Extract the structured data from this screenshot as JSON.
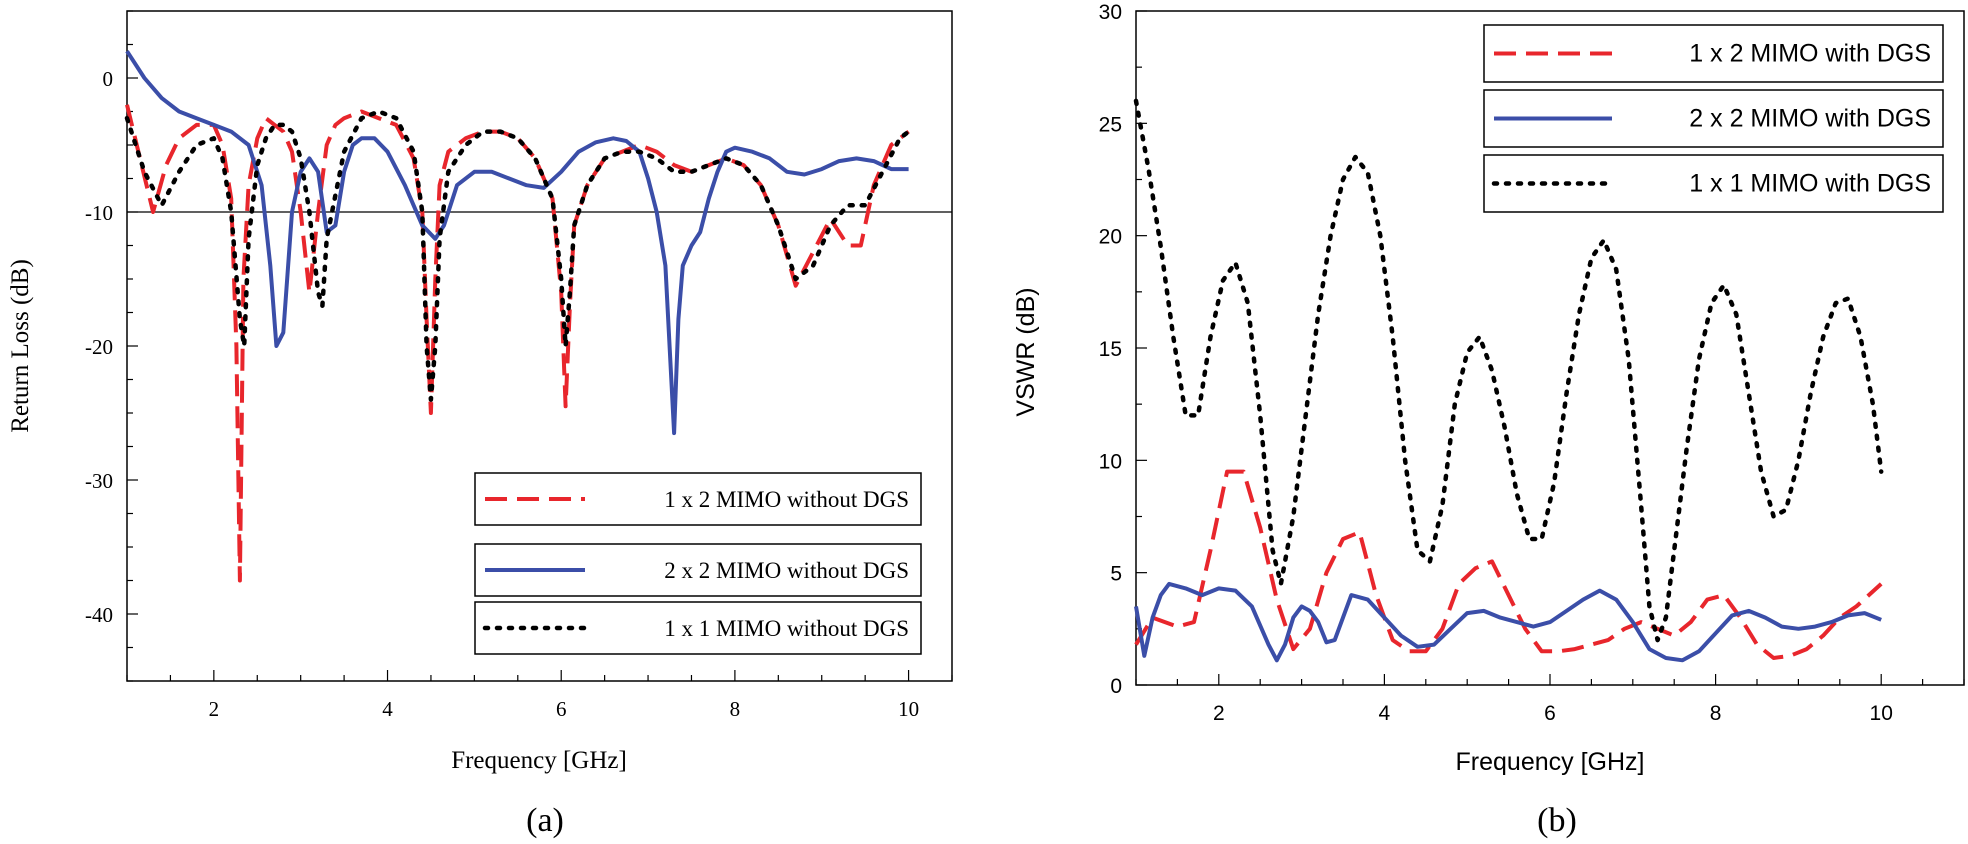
{
  "figure": {
    "panel_a_caption": "(a)",
    "panel_b_caption": "(b)"
  },
  "chart_data": [
    {
      "type": "line",
      "panel": "a",
      "title": "",
      "xlabel": "Frequency [GHz]",
      "ylabel": "Return Loss (dB)",
      "xlim": [
        1,
        10.5
      ],
      "ylim": [
        -45,
        5
      ],
      "xticks": [
        2,
        4,
        6,
        8,
        10
      ],
      "yticks": [
        0,
        -10,
        -20,
        -30,
        -40
      ],
      "reference_line_y": -10,
      "legend_position": "bottom-right",
      "series": [
        {
          "name": "1 x 2 MIMO without DGS",
          "color": "#e8262c",
          "style": "dashed",
          "x": [
            1.0,
            1.15,
            1.3,
            1.45,
            1.6,
            1.8,
            2.0,
            2.1,
            2.2,
            2.26,
            2.3,
            2.34,
            2.4,
            2.5,
            2.6,
            2.7,
            2.8,
            2.9,
            3.0,
            3.1,
            3.2,
            3.3,
            3.4,
            3.5,
            3.7,
            3.9,
            4.1,
            4.3,
            4.4,
            4.45,
            4.5,
            4.55,
            4.6,
            4.7,
            4.9,
            5.1,
            5.3,
            5.5,
            5.7,
            5.9,
            6.0,
            6.05,
            6.1,
            6.15,
            6.3,
            6.5,
            6.7,
            6.9,
            7.1,
            7.3,
            7.5,
            7.7,
            7.9,
            8.1,
            8.3,
            8.5,
            8.7,
            8.9,
            9.1,
            9.3,
            9.45,
            9.6,
            9.8,
            10.0
          ],
          "y": [
            -2,
            -6,
            -10,
            -6.5,
            -4.5,
            -3.5,
            -3.5,
            -5,
            -9,
            -20,
            -37.5,
            -15,
            -8,
            -4.5,
            -3,
            -3.5,
            -4,
            -5.5,
            -10,
            -16,
            -10,
            -5,
            -3.5,
            -3,
            -2.5,
            -3,
            -3.5,
            -6,
            -10,
            -18,
            -25,
            -15,
            -8,
            -5.5,
            -4.5,
            -4,
            -4,
            -4.5,
            -6,
            -9,
            -16,
            -24.5,
            -17,
            -11,
            -8,
            -6,
            -5.5,
            -5,
            -5.5,
            -6.5,
            -7,
            -6.5,
            -6,
            -6.5,
            -8,
            -11,
            -15.5,
            -13,
            -10.5,
            -12.5,
            -12.5,
            -8,
            -5,
            -4
          ]
        },
        {
          "name": "2 x 2 MIMO without DGS",
          "color": "#3b4ea8",
          "style": "solid",
          "x": [
            1.0,
            1.2,
            1.4,
            1.6,
            1.8,
            2.0,
            2.2,
            2.4,
            2.55,
            2.65,
            2.72,
            2.8,
            2.9,
            3.0,
            3.1,
            3.2,
            3.3,
            3.4,
            3.5,
            3.6,
            3.7,
            3.85,
            4.0,
            4.2,
            4.4,
            4.55,
            4.65,
            4.8,
            5.0,
            5.2,
            5.4,
            5.6,
            5.8,
            6.0,
            6.2,
            6.4,
            6.6,
            6.75,
            6.9,
            7.0,
            7.1,
            7.2,
            7.3,
            7.35,
            7.4,
            7.5,
            7.6,
            7.7,
            7.8,
            7.9,
            8.0,
            8.2,
            8.4,
            8.6,
            8.8,
            9.0,
            9.2,
            9.4,
            9.6,
            9.8,
            10.0
          ],
          "y": [
            2,
            0,
            -1.5,
            -2.5,
            -3,
            -3.5,
            -4,
            -5,
            -8,
            -14,
            -20,
            -19,
            -10,
            -7,
            -6,
            -7,
            -11.5,
            -11,
            -7,
            -5,
            -4.5,
            -4.5,
            -5.5,
            -8,
            -11,
            -12,
            -11,
            -8,
            -7,
            -7,
            -7.5,
            -8,
            -8.2,
            -7,
            -5.5,
            -4.8,
            -4.5,
            -4.7,
            -5.5,
            -7.5,
            -10,
            -14,
            -26.5,
            -18,
            -14,
            -12.5,
            -11.5,
            -9,
            -7,
            -5.5,
            -5.2,
            -5.5,
            -6,
            -7,
            -7.2,
            -6.8,
            -6.2,
            -6,
            -6.2,
            -6.8,
            -6.8
          ]
        },
        {
          "name": "1 x 1 MIMO without DGS",
          "color": "#000000",
          "style": "dotted",
          "x": [
            1.0,
            1.2,
            1.4,
            1.6,
            1.8,
            2.0,
            2.1,
            2.2,
            2.3,
            2.35,
            2.4,
            2.5,
            2.6,
            2.7,
            2.8,
            2.9,
            3.0,
            3.1,
            3.2,
            3.25,
            3.3,
            3.5,
            3.7,
            3.9,
            4.1,
            4.3,
            4.4,
            4.45,
            4.5,
            4.55,
            4.6,
            4.7,
            4.9,
            5.1,
            5.3,
            5.5,
            5.7,
            5.9,
            6.0,
            6.05,
            6.1,
            6.15,
            6.3,
            6.5,
            6.7,
            6.9,
            7.1,
            7.3,
            7.5,
            7.7,
            7.9,
            8.1,
            8.3,
            8.5,
            8.7,
            8.9,
            9.1,
            9.3,
            9.5,
            9.7,
            9.9,
            10.0
          ],
          "y": [
            -3,
            -7,
            -9.5,
            -7,
            -5,
            -4.5,
            -6,
            -10,
            -18,
            -20,
            -12,
            -6.5,
            -4.5,
            -3.5,
            -3.5,
            -4,
            -6,
            -10,
            -16,
            -17,
            -12,
            -5.5,
            -3,
            -2.5,
            -3,
            -5.5,
            -10,
            -20,
            -24,
            -20,
            -12,
            -7,
            -5,
            -4,
            -4,
            -4.5,
            -6,
            -9,
            -15,
            -20,
            -16,
            -11,
            -8,
            -6,
            -5.5,
            -5.5,
            -6,
            -7,
            -7,
            -6.5,
            -6,
            -6.5,
            -8,
            -11,
            -15,
            -14,
            -11,
            -9.5,
            -9.5,
            -7,
            -4.5,
            -4
          ]
        }
      ]
    },
    {
      "type": "line",
      "panel": "b",
      "title": "",
      "xlabel": "Frequency [GHz]",
      "ylabel": "VSWR (dB)",
      "xlim": [
        1,
        11
      ],
      "ylim": [
        0,
        30
      ],
      "xticks": [
        2,
        4,
        6,
        8,
        10
      ],
      "yticks": [
        0,
        5,
        10,
        15,
        20,
        25,
        30
      ],
      "legend_position": "top-right",
      "series": [
        {
          "name": "1 x 2 MIMO with DGS",
          "color": "#e8262c",
          "style": "dashed",
          "x": [
            1.0,
            1.2,
            1.5,
            1.7,
            1.9,
            2.1,
            2.3,
            2.5,
            2.7,
            2.9,
            3.1,
            3.3,
            3.5,
            3.7,
            3.9,
            4.1,
            4.3,
            4.5,
            4.7,
            4.9,
            5.1,
            5.3,
            5.5,
            5.7,
            5.9,
            6.1,
            6.3,
            6.5,
            6.7,
            6.9,
            7.1,
            7.3,
            7.5,
            7.7,
            7.9,
            8.1,
            8.3,
            8.5,
            8.7,
            8.9,
            9.1,
            9.3,
            9.5,
            9.7,
            10.0
          ],
          "y": [
            1.8,
            3.0,
            2.6,
            2.8,
            6.0,
            9.5,
            9.5,
            7.0,
            3.8,
            1.6,
            2.5,
            5.0,
            6.5,
            6.8,
            4.0,
            2.0,
            1.5,
            1.5,
            2.5,
            4.5,
            5.2,
            5.5,
            4.0,
            2.5,
            1.5,
            1.5,
            1.6,
            1.8,
            2.0,
            2.5,
            2.8,
            2.5,
            2.2,
            2.8,
            3.8,
            4.0,
            3.0,
            1.8,
            1.2,
            1.3,
            1.6,
            2.2,
            3.0,
            3.5,
            4.5
          ]
        },
        {
          "name": "2 x 2 MIMO with DGS",
          "color": "#3b4ea8",
          "style": "solid",
          "x": [
            1.0,
            1.1,
            1.2,
            1.3,
            1.4,
            1.6,
            1.8,
            2.0,
            2.2,
            2.4,
            2.6,
            2.7,
            2.8,
            2.9,
            3.0,
            3.1,
            3.2,
            3.3,
            3.4,
            3.5,
            3.6,
            3.8,
            4.0,
            4.2,
            4.4,
            4.6,
            4.8,
            5.0,
            5.2,
            5.4,
            5.6,
            5.8,
            6.0,
            6.2,
            6.4,
            6.6,
            6.8,
            7.0,
            7.2,
            7.4,
            7.6,
            7.8,
            8.0,
            8.2,
            8.4,
            8.6,
            8.8,
            9.0,
            9.2,
            9.4,
            9.6,
            9.8,
            10.0
          ],
          "y": [
            3.5,
            1.3,
            3.0,
            4.0,
            4.5,
            4.3,
            4.0,
            4.3,
            4.2,
            3.5,
            1.8,
            1.1,
            1.8,
            3.0,
            3.5,
            3.3,
            2.8,
            1.9,
            2.0,
            3.0,
            4.0,
            3.8,
            3.0,
            2.2,
            1.7,
            1.8,
            2.5,
            3.2,
            3.3,
            3.0,
            2.8,
            2.6,
            2.8,
            3.3,
            3.8,
            4.2,
            3.8,
            2.8,
            1.6,
            1.2,
            1.1,
            1.5,
            2.3,
            3.1,
            3.3,
            3.0,
            2.6,
            2.5,
            2.6,
            2.8,
            3.1,
            3.2,
            2.9
          ]
        },
        {
          "name": "1 x 1 MIMO with DGS",
          "color": "#000000",
          "style": "dotted",
          "x": [
            1.0,
            1.15,
            1.3,
            1.45,
            1.6,
            1.75,
            1.9,
            2.05,
            2.2,
            2.35,
            2.5,
            2.65,
            2.75,
            2.9,
            3.05,
            3.2,
            3.35,
            3.5,
            3.65,
            3.8,
            3.95,
            4.1,
            4.25,
            4.4,
            4.55,
            4.7,
            4.85,
            5.0,
            5.15,
            5.3,
            5.45,
            5.6,
            5.75,
            5.9,
            6.05,
            6.2,
            6.35,
            6.5,
            6.65,
            6.8,
            6.95,
            7.1,
            7.2,
            7.3,
            7.4,
            7.5,
            7.65,
            7.8,
            7.95,
            8.1,
            8.25,
            8.4,
            8.55,
            8.7,
            8.85,
            9.0,
            9.15,
            9.3,
            9.45,
            9.6,
            9.75,
            9.9,
            10.0
          ],
          "y": [
            26.0,
            23.0,
            19.5,
            15.5,
            12.0,
            12.0,
            15.5,
            18.0,
            18.8,
            17.0,
            12.0,
            6.0,
            4.5,
            7.5,
            12.0,
            16.5,
            20.0,
            22.5,
            23.5,
            22.8,
            20.0,
            15.5,
            10.0,
            6.0,
            5.5,
            8.0,
            12.5,
            14.8,
            15.5,
            14.0,
            11.5,
            8.5,
            6.5,
            6.5,
            9.0,
            13.0,
            16.5,
            19.0,
            19.8,
            18.5,
            14.5,
            8.0,
            3.5,
            2.0,
            3.0,
            6.0,
            10.5,
            14.5,
            17.0,
            17.8,
            16.5,
            13.0,
            9.5,
            7.5,
            7.8,
            10.0,
            13.0,
            15.5,
            17.0,
            17.2,
            15.5,
            12.5,
            9.5
          ]
        }
      ]
    }
  ]
}
